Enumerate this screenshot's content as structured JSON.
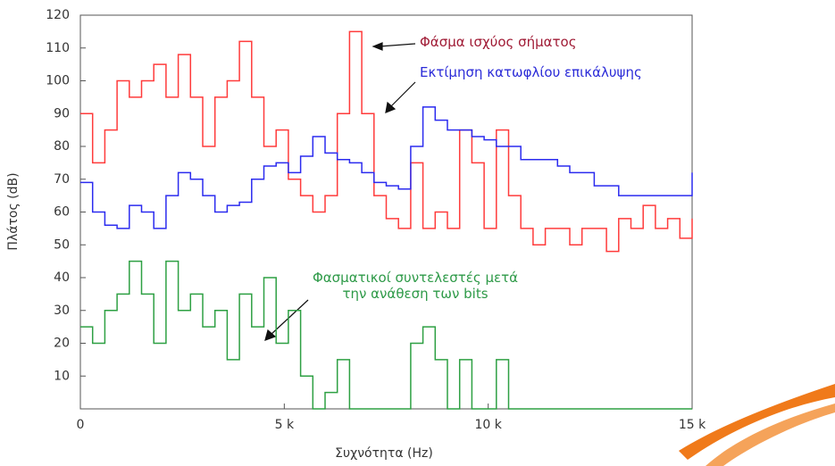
{
  "chart_data": {
    "type": "step",
    "x_label": "Συχνότητα (Hz)",
    "y_label": "Πλάτος (dB)",
    "x": [
      0,
      300,
      600,
      900,
      1200,
      1500,
      1800,
      2100,
      2400,
      2700,
      3000,
      3300,
      3600,
      3900,
      4200,
      4500,
      4800,
      5100,
      5400,
      5700,
      6000,
      6300,
      6600,
      6900,
      7200,
      7500,
      7800,
      8100,
      8400,
      8700,
      9000,
      9300,
      9600,
      9900,
      10200,
      10500,
      10800,
      11100,
      11400,
      11700,
      12000,
      12300,
      12600,
      12900,
      13200,
      13500,
      13800,
      14100,
      14400,
      14700,
      15000
    ],
    "series": [
      {
        "name": "Φάσμα ισχύος σήματος",
        "color": "#ff3b3b",
        "values": [
          90,
          75,
          85,
          100,
          95,
          100,
          105,
          95,
          108,
          95,
          80,
          95,
          100,
          112,
          95,
          80,
          85,
          70,
          65,
          60,
          65,
          90,
          115,
          90,
          65,
          58,
          55,
          75,
          55,
          60,
          55,
          85,
          75,
          55,
          85,
          65,
          55,
          50,
          55,
          55,
          50,
          55,
          55,
          48,
          58,
          55,
          62,
          55,
          58,
          52,
          58
        ]
      },
      {
        "name": "Εκτίμηση κατωφλίου επικάλυψης",
        "color": "#2b2bef",
        "values": [
          69,
          60,
          56,
          55,
          62,
          60,
          55,
          65,
          72,
          70,
          65,
          60,
          62,
          63,
          70,
          74,
          75,
          72,
          77,
          83,
          78,
          76,
          75,
          72,
          69,
          68,
          67,
          80,
          92,
          88,
          85,
          85,
          83,
          82,
          80,
          80,
          76,
          76,
          76,
          74,
          72,
          72,
          68,
          68,
          65,
          65,
          65,
          65,
          65,
          65,
          72
        ]
      },
      {
        "name": "Φασματικοί συντελεστές μετά την ανάθεση των bits",
        "color": "#2ea043",
        "values": [
          25,
          20,
          30,
          35,
          45,
          35,
          20,
          45,
          30,
          35,
          25,
          30,
          15,
          35,
          25,
          40,
          20,
          30,
          10,
          0,
          5,
          15,
          0,
          0,
          0,
          0,
          0,
          20,
          25,
          15,
          0,
          15,
          0,
          0,
          15,
          0,
          0,
          0,
          0,
          0,
          0,
          0,
          0,
          0,
          0,
          0,
          0,
          0,
          0,
          0,
          0
        ]
      }
    ],
    "xlim": [
      0,
      15000
    ],
    "xticks": [
      {
        "value": 0,
        "label": "0"
      },
      {
        "value": 5000,
        "label": "5 k"
      },
      {
        "value": 10000,
        "label": "10 k"
      },
      {
        "value": 15000,
        "label": "15 k"
      }
    ],
    "ylim": [
      0,
      120
    ],
    "yticks": [
      10,
      20,
      30,
      40,
      50,
      60,
      70,
      80,
      90,
      100,
      110,
      120
    ],
    "grid": false
  }
}
